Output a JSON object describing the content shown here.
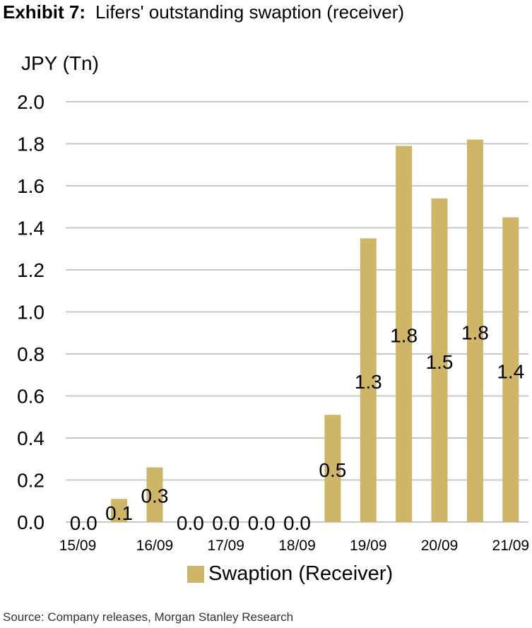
{
  "header": {
    "exhibit": "Exhibit 7:",
    "title": "Lifers' outstanding swaption (receiver)"
  },
  "footer": {
    "source": "Source: Company releases, Morgan Stanley Research"
  },
  "colors": {
    "bar": "#cfb567",
    "grid": "#c8c8c8"
  },
  "chart_data": {
    "type": "bar",
    "ylabel": "JPY (Tn)",
    "ylim": [
      0,
      2.0
    ],
    "yticks": [
      "0.0",
      "0.2",
      "0.4",
      "0.6",
      "0.8",
      "1.0",
      "1.2",
      "1.4",
      "1.6",
      "1.8",
      "2.0"
    ],
    "xticks": [
      "15/09",
      "16/09",
      "17/09",
      "18/09",
      "19/09",
      "20/09",
      "21/09"
    ],
    "grid": true,
    "legend_position": "bottom",
    "series": [
      {
        "name": "Swaption (Receiver)",
        "values": [
          0.0,
          0.11,
          0.26,
          0.0,
          0.0,
          0.0,
          0.0,
          0.51,
          1.35,
          1.79,
          1.54,
          1.82,
          1.45
        ],
        "data_labels": [
          "0.0",
          "0.1",
          "0.3",
          "0.0",
          "0.0",
          "0.0",
          "0.0",
          "0.5",
          "1.3",
          "1.8",
          "1.5",
          "1.8",
          "1.4"
        ]
      }
    ]
  }
}
